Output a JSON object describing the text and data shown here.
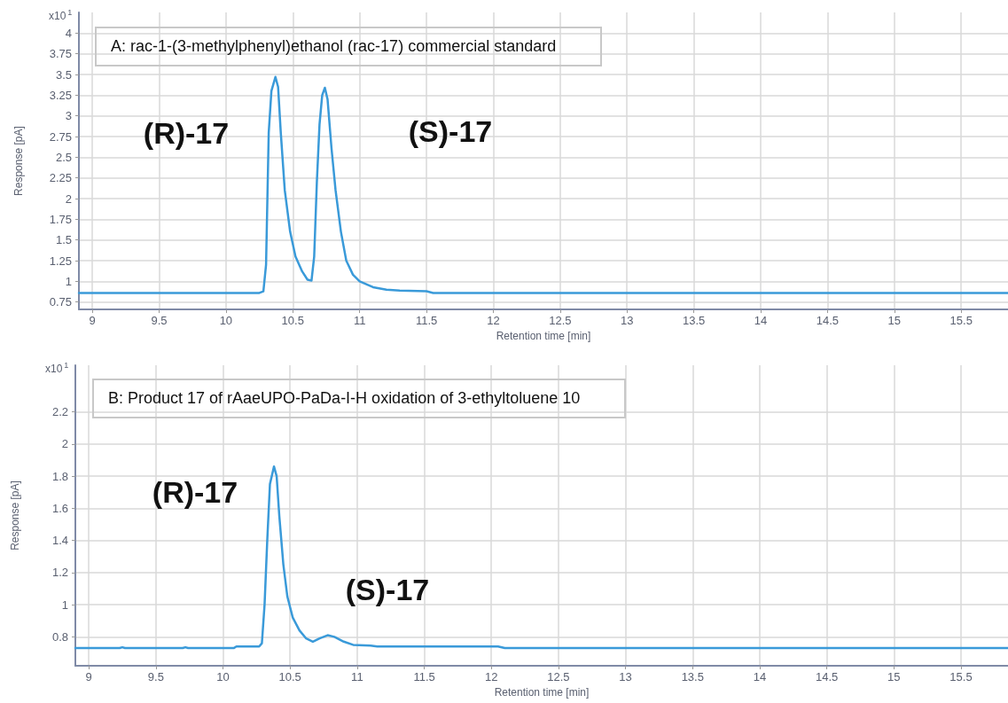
{
  "chart_data": [
    {
      "type": "line",
      "title": "A: rac-1-(3-methylphenyl)ethanol (rac-17) commercial standard",
      "xlabel": "Retention time [min]",
      "ylabel": "Response [pA]",
      "annotations": [
        "x10$^{1}$",
        "(R)-17",
        "(S)-17"
      ],
      "series": [
        {
          "color": "#3a9ad9",
          "x": [
            8.9,
            10.25,
            10.28,
            10.3,
            10.31,
            10.32,
            10.34,
            10.37,
            10.39,
            10.41,
            10.44,
            10.48,
            10.52,
            10.57,
            10.61,
            10.64,
            10.66,
            10.68,
            10.7,
            10.72,
            10.74,
            10.76,
            10.79,
            10.82,
            10.86,
            10.9,
            10.95,
            11.0,
            11.1,
            11.2,
            11.3,
            11.5,
            11.55,
            15.85
          ],
          "values": [
            0.86,
            0.86,
            0.88,
            1.2,
            2.0,
            2.8,
            3.3,
            3.47,
            3.35,
            2.8,
            2.1,
            1.6,
            1.3,
            1.12,
            1.02,
            1.01,
            1.3,
            2.2,
            2.9,
            3.25,
            3.34,
            3.2,
            2.6,
            2.1,
            1.6,
            1.25,
            1.08,
            1.0,
            0.93,
            0.9,
            0.89,
            0.88,
            0.86,
            0.86
          ]
        }
      ],
      "xlim": [
        8.9,
        15.85
      ],
      "xticks": [
        9,
        9.5,
        10,
        10.5,
        11,
        11.5,
        12,
        12.5,
        13,
        13.5,
        14,
        14.5,
        15,
        15.5
      ],
      "ylim": [
        0.66,
        4.25
      ],
      "yticks": [
        0.75,
        1,
        1.25,
        1.5,
        1.75,
        2,
        2.25,
        2.5,
        2.75,
        3,
        3.25,
        3.5,
        3.75,
        4
      ],
      "grid": true,
      "marker": "none",
      "line_style": "solid"
    },
    {
      "type": "line",
      "title": "B: Product 17 of rAaeUPO-PaDa-I-H oxidation of 3-ethyltoluene 10",
      "xlabel": "Retention time [min]",
      "ylabel": "Response [pA]",
      "annotations": [
        "x10$^{1}$",
        "(R)-17",
        "(S)-17"
      ],
      "series": [
        {
          "color": "#3a9ad9",
          "x": [
            8.9,
            9.23,
            9.25,
            9.27,
            9.7,
            9.72,
            9.74,
            10.08,
            10.1,
            10.27,
            10.29,
            10.31,
            10.33,
            10.35,
            10.38,
            10.4,
            10.42,
            10.45,
            10.48,
            10.52,
            10.57,
            10.62,
            10.67,
            10.72,
            10.78,
            10.83,
            10.9,
            10.97,
            11.1,
            11.15,
            12.05,
            12.1,
            15.85
          ],
          "values": [
            0.73,
            0.73,
            0.735,
            0.73,
            0.73,
            0.735,
            0.73,
            0.73,
            0.74,
            0.74,
            0.76,
            1.0,
            1.4,
            1.75,
            1.86,
            1.8,
            1.55,
            1.25,
            1.05,
            0.92,
            0.84,
            0.79,
            0.77,
            0.79,
            0.81,
            0.8,
            0.77,
            0.75,
            0.745,
            0.74,
            0.74,
            0.73,
            0.73
          ]
        }
      ],
      "xlim": [
        8.9,
        15.85
      ],
      "xticks": [
        9,
        9.5,
        10,
        10.5,
        11,
        11.5,
        12,
        12.5,
        13,
        13.5,
        14,
        14.5,
        15,
        15.5
      ],
      "ylim": [
        0.62,
        2.49
      ],
      "yticks": [
        0.8,
        1,
        1.2,
        1.4,
        1.6,
        1.8,
        2,
        2.2
      ],
      "grid": true,
      "marker": "none",
      "line_style": "solid"
    }
  ]
}
